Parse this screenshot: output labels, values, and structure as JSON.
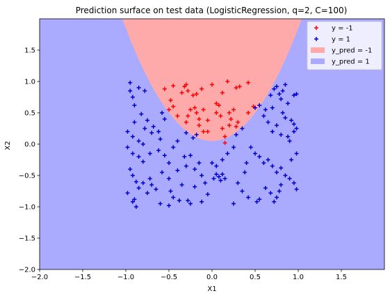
{
  "chart_data": {
    "type": "scatter",
    "title": "Prediction surface on test data (LogisticRegression, q=2, C=100)",
    "xlabel": "X1",
    "ylabel": "X2",
    "xlim": [
      -2.0,
      2.0
    ],
    "ylim": [
      -2.0,
      2.0
    ],
    "xticks": [
      "−2.0",
      "−1.5",
      "−1.0",
      "−0.5",
      "0.0",
      "0.5",
      "1.0",
      "1.5"
    ],
    "yticks": [
      "−2.0",
      "−1.5",
      "−1.0",
      "−0.5",
      "0.0",
      "0.5",
      "1.0",
      "1.5"
    ],
    "xtick_values": [
      -2.0,
      -1.5,
      -1.0,
      -0.5,
      0.0,
      0.5,
      1.0,
      1.5
    ],
    "ytick_values": [
      -2.0,
      -1.5,
      -1.0,
      -0.5,
      0.0,
      0.5,
      1.0,
      1.5
    ],
    "grid": false,
    "legend_position": "top-right",
    "colors": {
      "class_neg_points": "#ff0000",
      "class_pos_points": "#0000cc",
      "region_neg": "#ffaaaa",
      "region_pos": "#aaaaff"
    },
    "decision_boundary": {
      "equation": "x2 = 0.05 + 1.8*x1^2",
      "inside_class": "-1"
    },
    "legend": [
      {
        "label": "y = -1",
        "kind": "marker",
        "color": "#ff0000"
      },
      {
        "label": "y = 1",
        "kind": "marker",
        "color": "#0000cc"
      },
      {
        "label": "y_pred = -1",
        "kind": "patch",
        "color": "#ffaaaa"
      },
      {
        "label": "y_pred = 1",
        "kind": "patch",
        "color": "#aaaaff"
      }
    ],
    "series": [
      {
        "name": "y = -1",
        "marker": "+",
        "color": "#ff0000",
        "points": [
          [
            -0.55,
            0.88
          ],
          [
            -0.45,
            0.93
          ],
          [
            -0.35,
            0.82
          ],
          [
            -0.32,
            0.92
          ],
          [
            -0.3,
            0.95
          ],
          [
            -0.28,
            0.85
          ],
          [
            -0.22,
            0.78
          ],
          [
            -0.18,
            0.8
          ],
          [
            -0.12,
            0.88
          ],
          [
            0.0,
            0.95
          ],
          [
            0.18,
            1.0
          ],
          [
            0.28,
            0.9
          ],
          [
            0.32,
            0.92
          ],
          [
            0.42,
            0.98
          ],
          [
            0.12,
            0.82
          ],
          [
            0.05,
            0.65
          ],
          [
            0.08,
            0.62
          ],
          [
            -0.45,
            0.6
          ],
          [
            -0.48,
            0.7
          ],
          [
            -0.5,
            0.55
          ],
          [
            -0.25,
            0.55
          ],
          [
            -0.28,
            0.45
          ],
          [
            -0.18,
            0.5
          ],
          [
            -0.15,
            0.4
          ],
          [
            -0.1,
            0.55
          ],
          [
            -0.05,
            0.38
          ],
          [
            0.1,
            0.45
          ],
          [
            0.2,
            0.5
          ],
          [
            0.25,
            0.55
          ],
          [
            0.3,
            0.35
          ],
          [
            0.28,
            0.28
          ],
          [
            -0.3,
            0.35
          ],
          [
            -0.15,
            0.3
          ],
          [
            -0.1,
            0.2
          ],
          [
            -0.05,
            0.2
          ],
          [
            0.12,
            0.25
          ],
          [
            0.2,
            0.3
          ],
          [
            0.15,
            0.12
          ],
          [
            0.42,
            0.5
          ],
          [
            0.48,
            0.6
          ],
          [
            -0.4,
            0.45
          ],
          [
            0.05,
            0.5
          ],
          [
            0.22,
            0.4
          ],
          [
            -0.2,
            0.58
          ],
          [
            0.15,
            0.02
          ]
        ]
      },
      {
        "name": "y = 1",
        "marker": "+",
        "color": "#0000cc",
        "points": [
          [
            -0.95,
            0.98
          ],
          [
            -0.95,
            0.85
          ],
          [
            -0.92,
            0.75
          ],
          [
            -0.85,
            0.9
          ],
          [
            -0.78,
            0.85
          ],
          [
            -0.9,
            0.62
          ],
          [
            -0.82,
            0.48
          ],
          [
            -0.9,
            0.35
          ],
          [
            -0.75,
            0.38
          ],
          [
            -0.68,
            0.28
          ],
          [
            -0.98,
            0.2
          ],
          [
            -0.92,
            0.12
          ],
          [
            -0.85,
            0.05
          ],
          [
            -0.8,
            0.0
          ],
          [
            -0.78,
            0.25
          ],
          [
            -0.7,
            0.18
          ],
          [
            -0.62,
            0.2
          ],
          [
            -0.58,
            0.5
          ],
          [
            -0.55,
            0.4
          ],
          [
            -0.6,
            0.08
          ],
          [
            -0.98,
            -0.05
          ],
          [
            -0.92,
            -0.15
          ],
          [
            -0.85,
            -0.2
          ],
          [
            -0.8,
            -0.28
          ],
          [
            -0.72,
            -0.15
          ],
          [
            -0.62,
            -0.1
          ],
          [
            -0.55,
            -0.18
          ],
          [
            -0.5,
            -0.3
          ],
          [
            -0.45,
            -0.05
          ],
          [
            -0.4,
            0.05
          ],
          [
            -0.95,
            -0.4
          ],
          [
            -0.92,
            -0.5
          ],
          [
            -0.88,
            -0.6
          ],
          [
            -0.85,
            -0.7
          ],
          [
            -0.8,
            -0.62
          ],
          [
            -0.72,
            -0.55
          ],
          [
            -0.7,
            -0.65
          ],
          [
            -0.75,
            -0.78
          ],
          [
            -0.65,
            -0.72
          ],
          [
            -0.58,
            -0.45
          ],
          [
            -0.5,
            -0.55
          ],
          [
            -0.48,
            -0.75
          ],
          [
            -0.98,
            -0.78
          ],
          [
            -0.92,
            -0.92
          ],
          [
            -0.9,
            -0.88
          ],
          [
            -0.88,
            -1.0
          ],
          [
            -0.6,
            -0.95
          ],
          [
            -0.5,
            -0.98
          ],
          [
            -0.45,
            -0.85
          ],
          [
            -0.38,
            -0.9
          ],
          [
            -0.35,
            -0.65
          ],
          [
            -0.4,
            -0.42
          ],
          [
            -0.3,
            -0.35
          ],
          [
            -0.32,
            -0.2
          ],
          [
            -0.25,
            -0.18
          ],
          [
            -0.2,
            -0.4
          ],
          [
            -0.15,
            -0.3
          ],
          [
            -0.12,
            -0.5
          ],
          [
            -0.08,
            -0.62
          ],
          [
            -0.2,
            -0.68
          ],
          [
            -0.28,
            -0.9
          ],
          [
            -0.25,
            -0.95
          ],
          [
            -0.12,
            -0.92
          ],
          [
            -0.05,
            -0.8
          ],
          [
            0.02,
            -0.55
          ],
          [
            0.05,
            -0.48
          ],
          [
            0.08,
            -0.52
          ],
          [
            0.1,
            -0.58
          ],
          [
            0.12,
            -0.48
          ],
          [
            0.15,
            -0.55
          ],
          [
            0.0,
            -0.3
          ],
          [
            0.05,
            -0.35
          ],
          [
            0.12,
            -0.25
          ],
          [
            0.18,
            -0.15
          ],
          [
            0.25,
            -0.05
          ],
          [
            -0.22,
            0.1
          ],
          [
            -0.18,
            0.15
          ],
          [
            -0.3,
            0.18
          ],
          [
            0.28,
            0.15
          ],
          [
            0.35,
            0.25
          ],
          [
            0.5,
            0.58
          ],
          [
            0.55,
            0.62
          ],
          [
            0.6,
            0.45
          ],
          [
            0.62,
            0.55
          ],
          [
            0.65,
            0.35
          ],
          [
            0.7,
            0.58
          ],
          [
            0.68,
            0.78
          ],
          [
            0.72,
            0.88
          ],
          [
            0.75,
            0.92
          ],
          [
            0.78,
            0.8
          ],
          [
            0.8,
            0.72
          ],
          [
            0.82,
            0.85
          ],
          [
            0.85,
            0.95
          ],
          [
            0.88,
            0.65
          ],
          [
            0.95,
            0.78
          ],
          [
            0.98,
            0.8
          ],
          [
            0.82,
            0.5
          ],
          [
            0.85,
            0.42
          ],
          [
            0.92,
            0.38
          ],
          [
            0.95,
            0.32
          ],
          [
            0.75,
            0.3
          ],
          [
            0.7,
            0.2
          ],
          [
            0.8,
            0.15
          ],
          [
            0.88,
            0.12
          ],
          [
            0.9,
            0.05
          ],
          [
            0.95,
            0.2
          ],
          [
            0.98,
            0.25
          ],
          [
            0.45,
            -0.05
          ],
          [
            0.5,
            -0.15
          ],
          [
            0.55,
            -0.2
          ],
          [
            0.6,
            -0.3
          ],
          [
            0.65,
            -0.25
          ],
          [
            0.7,
            -0.35
          ],
          [
            0.75,
            -0.45
          ],
          [
            0.8,
            -0.38
          ],
          [
            0.85,
            -0.5
          ],
          [
            0.9,
            -0.55
          ],
          [
            0.95,
            -0.62
          ],
          [
            0.98,
            -0.72
          ],
          [
            0.8,
            -0.65
          ],
          [
            0.78,
            -0.75
          ],
          [
            0.75,
            -0.85
          ],
          [
            0.72,
            -0.92
          ],
          [
            0.68,
            -0.78
          ],
          [
            0.62,
            -0.7
          ],
          [
            0.55,
            -0.88
          ],
          [
            0.52,
            -0.92
          ],
          [
            0.42,
            -0.85
          ],
          [
            0.35,
            -0.75
          ],
          [
            0.4,
            -0.3
          ],
          [
            0.38,
            -0.45
          ],
          [
            0.3,
            -0.62
          ],
          [
            0.25,
            -0.95
          ],
          [
            0.92,
            -0.25
          ],
          [
            0.98,
            -0.15
          ]
        ]
      }
    ]
  }
}
